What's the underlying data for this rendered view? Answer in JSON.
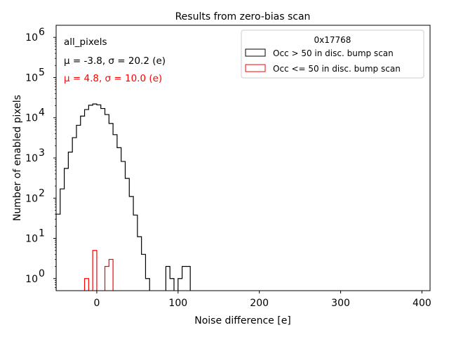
{
  "chart_data": {
    "type": "histogram",
    "title": "Results from zero-bias scan",
    "xlabel": "Noise difference [e]",
    "ylabel": "Number of enabled pixels",
    "xlim": [
      -50,
      410
    ],
    "ylim": [
      0.5,
      2000000
    ],
    "yscale": "log",
    "grid": false,
    "x_ticks": [
      {
        "value": 0,
        "label": "0"
      },
      {
        "value": 100,
        "label": "100"
      },
      {
        "value": 200,
        "label": "200"
      },
      {
        "value": 300,
        "label": "300"
      },
      {
        "value": 400,
        "label": "400"
      }
    ],
    "y_ticks": [
      {
        "value": 1,
        "base": "10",
        "exp": "0"
      },
      {
        "value": 10,
        "base": "10",
        "exp": "1"
      },
      {
        "value": 100,
        "base": "10",
        "exp": "2"
      },
      {
        "value": 1000,
        "base": "10",
        "exp": "3"
      },
      {
        "value": 10000,
        "base": "10",
        "exp": "4"
      },
      {
        "value": 100000,
        "base": "10",
        "exp": "5"
      },
      {
        "value": 1000000,
        "base": "10",
        "exp": "6"
      }
    ],
    "legend": {
      "position": "top-right",
      "title": "0x17768",
      "entries": [
        {
          "label": "Occ > 50 in disc. bump scan",
          "color": "#000000"
        },
        {
          "label": "Occ <= 50 in disc. bump scan",
          "color": "#ff0000"
        }
      ]
    },
    "annotations": [
      {
        "text": "all_pixels",
        "color": "#000000"
      },
      {
        "text": "μ = -3.8, σ = 20.2 (e)",
        "color": "#000000"
      },
      {
        "text": "μ = 4.8, σ = 10.0 (e)",
        "color": "#ff0000"
      }
    ],
    "series": [
      {
        "name": "Occ > 50 in disc. bump scan",
        "color": "#000000",
        "bin_width": 5,
        "bins": [
          [
            -50,
            40
          ],
          [
            -45,
            170
          ],
          [
            -40,
            550
          ],
          [
            -35,
            1400
          ],
          [
            -30,
            3200
          ],
          [
            -25,
            6500
          ],
          [
            -20,
            11000
          ],
          [
            -15,
            16000
          ],
          [
            -10,
            20500
          ],
          [
            -5,
            22000
          ],
          [
            0,
            21000
          ],
          [
            5,
            17000
          ],
          [
            10,
            12000
          ],
          [
            15,
            7200
          ],
          [
            20,
            3800
          ],
          [
            25,
            1800
          ],
          [
            30,
            820
          ],
          [
            35,
            310
          ],
          [
            40,
            110
          ],
          [
            45,
            38
          ],
          [
            50,
            11
          ],
          [
            55,
            4
          ],
          [
            60,
            1
          ],
          [
            65,
            0
          ],
          [
            70,
            0
          ],
          [
            75,
            0
          ],
          [
            80,
            0
          ],
          [
            85,
            2
          ],
          [
            90,
            1
          ],
          [
            95,
            0
          ],
          [
            100,
            1
          ],
          [
            105,
            2
          ],
          [
            110,
            2
          ]
        ]
      },
      {
        "name": "Occ <= 50 in disc. bump scan",
        "color": "#ff0000",
        "bin_width": 5,
        "bins": [
          [
            -15,
            1
          ],
          [
            -10,
            0
          ],
          [
            -5,
            5
          ],
          [
            0,
            0
          ],
          [
            5,
            0
          ],
          [
            10,
            2
          ],
          [
            15,
            3
          ]
        ]
      }
    ]
  }
}
